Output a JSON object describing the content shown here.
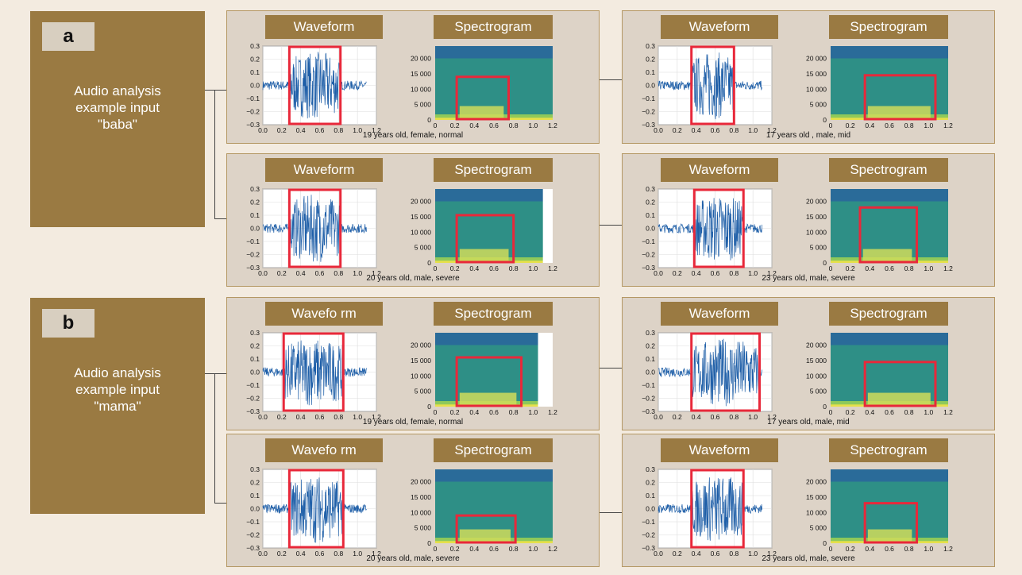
{
  "labels": {
    "waveform": "Waveform",
    "spectrogram": "Spectrogram"
  },
  "sections": [
    {
      "letter": "a",
      "caption_lines": [
        "Audio analysis",
        "example input",
        "\"baba\""
      ]
    },
    {
      "letter": "b",
      "caption_lines": [
        "Audio analysis",
        "example input",
        "\"mama\""
      ]
    }
  ],
  "panels": [
    {
      "section": "a",
      "subtitle": "19 years old, female, normal",
      "wf_header": "Waveform",
      "sp_header": "Spectrogram"
    },
    {
      "section": "a",
      "subtitle": "17 years old , male, mid",
      "wf_header": "Waveform",
      "sp_header": "Spectrogram"
    },
    {
      "section": "a",
      "subtitle": "20 years old, male, severe",
      "wf_header": "Waveform",
      "sp_header": "Spectrogram"
    },
    {
      "section": "a",
      "subtitle": "23 years old, male, severe",
      "wf_header": "Waveform",
      "sp_header": "Spectrogram"
    },
    {
      "section": "b",
      "subtitle": "19 years old, female, normal",
      "wf_header": "Wavefo rm",
      "sp_header": "Spectrogram"
    },
    {
      "section": "b",
      "subtitle": "17 years old, male, mid",
      "wf_header": "Waveform",
      "sp_header": "Spectrogram"
    },
    {
      "section": "b",
      "subtitle": "20 years old, male, severe",
      "wf_header": "Wavefo rm",
      "sp_header": "Spectrogram"
    },
    {
      "section": "b",
      "subtitle": "23 years old, male, severe",
      "wf_header": "Waveform",
      "sp_header": "Spectrogram"
    }
  ],
  "waveform_axes": {
    "x_ticks": [
      "0.0",
      "0.2",
      "0.4",
      "0.6",
      "0.8",
      "1.0",
      "1.2"
    ],
    "y_ticks": [
      "0.3",
      "0.2",
      "0.1",
      "0.0",
      "−0.1",
      "−0.2",
      "−0.3"
    ],
    "xlim": [
      0,
      1.2
    ],
    "ylim": [
      -0.3,
      0.3
    ]
  },
  "spectrogram_axes": {
    "x_ticks": [
      "0",
      "0.2",
      "0.4",
      "0.6",
      "0.8",
      "1.0",
      "1.2"
    ],
    "y_ticks": [
      "20 000",
      "15 000",
      "10 000",
      "5 000",
      "0"
    ],
    "xlim": [
      0,
      1.2
    ],
    "ylim": [
      0,
      24000
    ]
  },
  "highlight_color": "#e8283a",
  "waveform_color": "#1f5fa8",
  "panel_header_color": "#9a7a42"
}
